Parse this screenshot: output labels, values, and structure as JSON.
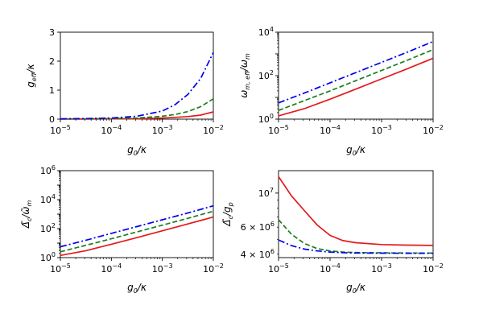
{
  "chart_data": [
    {
      "type": "line",
      "panel": "top-left",
      "xscale": "log",
      "yscale": "linear",
      "xlim": [
        -5,
        -2
      ],
      "ylim": [
        0,
        3
      ],
      "xlabel": "g0/κ",
      "ylabel": "g_eff/κ",
      "xticks": [
        -5,
        -4,
        -3,
        -2
      ],
      "yticks": [
        "0",
        "1",
        "2",
        "3"
      ],
      "x": [
        -5,
        -4.5,
        -4,
        -3.5,
        -3,
        -2.75,
        -2.5,
        -2.25,
        -2
      ],
      "series": [
        {
          "name": "red solid",
          "color": "#e31a1c",
          "style": "solid",
          "values": [
            0.002,
            0.004,
            0.008,
            0.015,
            0.04,
            0.06,
            0.09,
            0.14,
            0.25
          ]
        },
        {
          "name": "green dashed",
          "color": "#1a7f1a",
          "style": "dashed",
          "values": [
            0.005,
            0.01,
            0.02,
            0.04,
            0.1,
            0.16,
            0.26,
            0.43,
            0.7
          ]
        },
        {
          "name": "blue dashdot",
          "color": "#0000ee",
          "style": "dashdot",
          "values": [
            0.01,
            0.02,
            0.04,
            0.1,
            0.28,
            0.5,
            0.85,
            1.4,
            2.3
          ]
        }
      ]
    },
    {
      "type": "line",
      "panel": "top-right",
      "xscale": "log",
      "yscale": "log",
      "xlim": [
        -5,
        -2
      ],
      "ylim": [
        0,
        4
      ],
      "xlabel": "g0/κ",
      "ylabel": "ω_m,eff/ω_m",
      "xticks": [
        -5,
        -4,
        -3,
        -2
      ],
      "yticks": [
        0,
        2,
        4
      ],
      "x": [
        -5,
        -4.5,
        -4,
        -3.5,
        -3,
        -2.5,
        -2
      ],
      "series": [
        {
          "name": "red solid",
          "color": "#e31a1c",
          "style": "solid",
          "values": [
            0.15,
            0.48,
            0.92,
            1.38,
            1.85,
            2.32,
            2.8
          ]
        },
        {
          "name": "green dashed",
          "color": "#1a7f1a",
          "style": "dashed",
          "values": [
            0.4,
            0.85,
            1.3,
            1.77,
            2.24,
            2.71,
            3.2
          ]
        },
        {
          "name": "blue dashdot",
          "color": "#0000ee",
          "style": "dashdot",
          "values": [
            0.75,
            1.2,
            1.67,
            2.14,
            2.61,
            3.08,
            3.57
          ]
        }
      ]
    },
    {
      "type": "line",
      "panel": "bottom-left",
      "xscale": "log",
      "yscale": "log",
      "xlim": [
        -5,
        -2
      ],
      "ylim": [
        0,
        6
      ],
      "xlabel": "g0/κ",
      "ylabel": "Δc/ω_m",
      "xticks": [
        -5,
        -4,
        -3,
        -2
      ],
      "yticks": [
        0,
        2,
        4,
        6
      ],
      "x": [
        -5,
        -4.5,
        -4,
        -3.5,
        -3,
        -2.5,
        -2
      ],
      "series": [
        {
          "name": "red solid",
          "color": "#e31a1c",
          "style": "solid",
          "values": [
            0.15,
            0.48,
            0.92,
            1.38,
            1.85,
            2.32,
            2.8
          ]
        },
        {
          "name": "green dashed",
          "color": "#1a7f1a",
          "style": "dashed",
          "values": [
            0.4,
            0.85,
            1.3,
            1.77,
            2.24,
            2.71,
            3.2
          ]
        },
        {
          "name": "blue dashdot",
          "color": "#0000ee",
          "style": "dashdot",
          "values": [
            0.75,
            1.2,
            1.67,
            2.14,
            2.61,
            3.08,
            3.57
          ]
        }
      ]
    },
    {
      "type": "line",
      "panel": "bottom-right",
      "xscale": "log",
      "yscale": "log-values",
      "xlim": [
        -5,
        -2
      ],
      "ylim": [
        3800000,
        14000000
      ],
      "xlabel": "g0/κ",
      "ylabel": "Δc/g_p",
      "xticks": [
        -5,
        -4,
        -3,
        -2
      ],
      "ymajor": [
        {
          "value": 10000000,
          "mantissa": "",
          "exp": "7"
        }
      ],
      "yminor_labeled": [
        {
          "value": 4000000,
          "mantissa": "4 × ",
          "exp": "6"
        },
        {
          "value": 6000000,
          "mantissa": "6 × ",
          "exp": "6"
        }
      ],
      "yminor": [
        5000000,
        7000000,
        8000000,
        9000000
      ],
      "x": [
        -5,
        -4.75,
        -4.5,
        -4.25,
        -4,
        -3.75,
        -3.5,
        -3,
        -2.5,
        -2
      ],
      "series": [
        {
          "name": "red solid",
          "color": "#e31a1c",
          "style": "solid",
          "values": [
            12800000,
            9600000,
            7700000,
            6200000,
            5300000,
            4900000,
            4750000,
            4620000,
            4580000,
            4560000
          ]
        },
        {
          "name": "green dashed",
          "color": "#1a7f1a",
          "style": "dashed",
          "values": [
            6700000,
            5400000,
            4700000,
            4350000,
            4200000,
            4130000,
            4100000,
            4080000,
            4070000,
            4070000
          ]
        },
        {
          "name": "blue dashdot",
          "color": "#0000ee",
          "style": "dashdot",
          "values": [
            4950000,
            4550000,
            4320000,
            4200000,
            4130000,
            4090000,
            4070000,
            4060000,
            4055000,
            4050000
          ]
        }
      ]
    }
  ]
}
